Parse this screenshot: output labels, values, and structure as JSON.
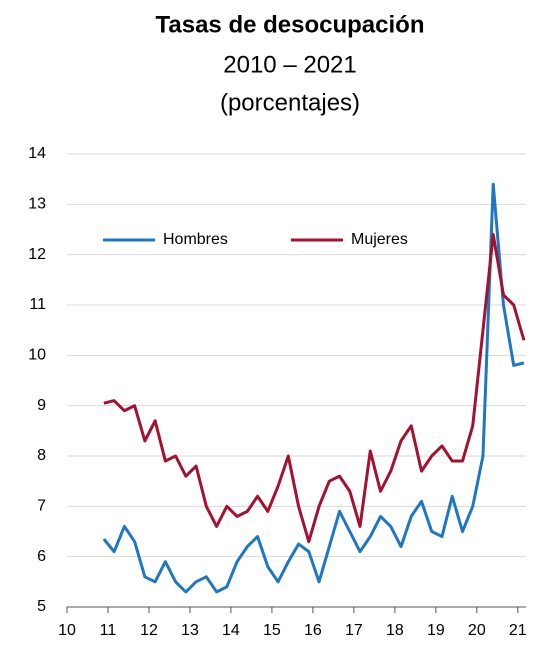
{
  "chart_data": {
    "type": "line",
    "title": "Tasas de desocupación",
    "subtitle": [
      "2010 – 2021",
      "(porcentajes)"
    ],
    "x": [
      10.9,
      11.15,
      11.4,
      11.65,
      11.9,
      12.15,
      12.4,
      12.65,
      12.9,
      13.15,
      13.4,
      13.65,
      13.9,
      14.15,
      14.4,
      14.65,
      14.9,
      15.15,
      15.4,
      15.65,
      15.9,
      16.15,
      16.4,
      16.65,
      16.9,
      17.15,
      17.4,
      17.65,
      17.9,
      18.15,
      18.4,
      18.65,
      18.9,
      19.15,
      19.4,
      19.65,
      19.9,
      20.15,
      20.4,
      20.65,
      20.9,
      21.15
    ],
    "series": [
      {
        "name": "Hombres",
        "color": "#1f77c4",
        "values": [
          6.35,
          6.1,
          6.6,
          6.3,
          5.6,
          5.5,
          5.9,
          5.5,
          5.3,
          5.5,
          5.6,
          5.3,
          5.4,
          5.9,
          6.2,
          6.4,
          5.8,
          5.5,
          5.9,
          6.25,
          6.1,
          5.5,
          6.2,
          6.9,
          6.5,
          6.1,
          6.4,
          6.8,
          6.6,
          6.2,
          6.8,
          7.1,
          6.5,
          6.4,
          7.2,
          6.5,
          7.0,
          8.0,
          13.4,
          11.0,
          9.8,
          9.85
        ]
      },
      {
        "name": "Mujeres",
        "color": "#a3122e",
        "values": [
          9.05,
          9.1,
          8.9,
          9.0,
          8.3,
          8.7,
          7.9,
          8.0,
          7.6,
          7.8,
          7.0,
          6.6,
          7.0,
          6.8,
          6.9,
          7.2,
          6.9,
          7.4,
          8.0,
          7.0,
          6.3,
          7.0,
          7.5,
          7.6,
          7.3,
          6.6,
          8.1,
          7.3,
          7.7,
          8.3,
          8.6,
          7.7,
          8.0,
          8.2,
          7.9,
          7.9,
          8.6,
          10.5,
          12.4,
          11.2,
          11.0,
          10.3
        ]
      }
    ],
    "xlim": [
      10,
      21.2
    ],
    "xticks": [
      10,
      11,
      12,
      13,
      14,
      15,
      16,
      17,
      18,
      19,
      20,
      21
    ],
    "ylim": [
      5,
      14
    ],
    "yticks": [
      5,
      6,
      7,
      8,
      9,
      10,
      11,
      12,
      13,
      14
    ],
    "grid": true,
    "legend": "top-left"
  }
}
